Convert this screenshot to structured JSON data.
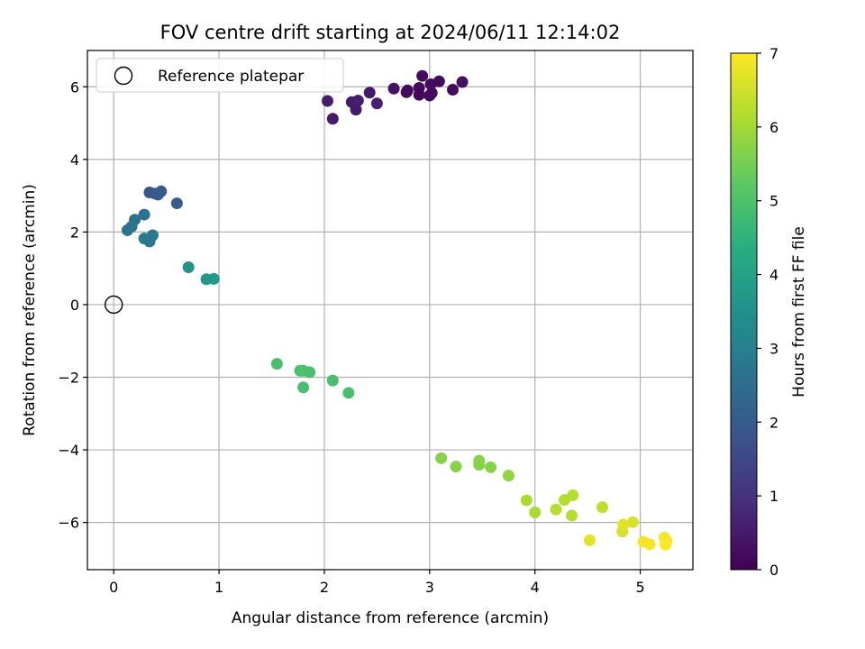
{
  "chart_data": {
    "type": "scatter",
    "title": "FOV centre drift starting at 2024/06/11 12:14:02",
    "xlabel": "Angular distance from reference (arcmin)",
    "ylabel": "Rotation from reference (arcmin)",
    "xlim": [
      -0.25,
      5.5
    ],
    "ylim": [
      -7.3,
      7.0
    ],
    "xticks": [
      0,
      1,
      2,
      3,
      4,
      5
    ],
    "yticks": [
      -6,
      -4,
      -2,
      0,
      2,
      4,
      6
    ],
    "grid": true,
    "legend": {
      "position": "top-left",
      "entries": [
        "Reference platepar"
      ]
    },
    "colorbar": {
      "label": "Hours from first FF file",
      "range": [
        0,
        7
      ],
      "ticks": [
        0,
        1,
        2,
        3,
        4,
        5,
        6,
        7
      ],
      "colormap": "viridis"
    },
    "reference": {
      "x": 0,
      "y": 0,
      "name": "Reference platepar"
    },
    "points": [
      {
        "x": 2.93,
        "y": 6.3,
        "c": 0.2
      },
      {
        "x": 3.09,
        "y": 6.15,
        "c": 0.2
      },
      {
        "x": 3.31,
        "y": 6.13,
        "c": 0.25
      },
      {
        "x": 3.01,
        "y": 6.07,
        "c": 0.2
      },
      {
        "x": 2.66,
        "y": 5.95,
        "c": 0.3
      },
      {
        "x": 2.79,
        "y": 5.9,
        "c": 0.2
      },
      {
        "x": 2.9,
        "y": 5.97,
        "c": 0.15
      },
      {
        "x": 3.22,
        "y": 5.92,
        "c": 0.2
      },
      {
        "x": 3.02,
        "y": 5.83,
        "c": 0.2
      },
      {
        "x": 2.9,
        "y": 5.78,
        "c": 0.1
      },
      {
        "x": 3.0,
        "y": 5.76,
        "c": 0.2
      },
      {
        "x": 2.78,
        "y": 5.85,
        "c": 0.15
      },
      {
        "x": 2.43,
        "y": 5.84,
        "c": 0.5
      },
      {
        "x": 2.03,
        "y": 5.61,
        "c": 0.6
      },
      {
        "x": 2.26,
        "y": 5.58,
        "c": 0.5
      },
      {
        "x": 2.32,
        "y": 5.62,
        "c": 0.6
      },
      {
        "x": 2.5,
        "y": 5.54,
        "c": 0.6
      },
      {
        "x": 2.3,
        "y": 5.37,
        "c": 0.5
      },
      {
        "x": 2.08,
        "y": 5.12,
        "c": 0.5
      },
      {
        "x": 0.34,
        "y": 3.09,
        "c": 1.9
      },
      {
        "x": 0.39,
        "y": 3.06,
        "c": 1.9
      },
      {
        "x": 0.42,
        "y": 3.03,
        "c": 2.0
      },
      {
        "x": 0.45,
        "y": 3.12,
        "c": 2.0
      },
      {
        "x": 0.6,
        "y": 2.79,
        "c": 2.0
      },
      {
        "x": 0.29,
        "y": 2.48,
        "c": 2.6
      },
      {
        "x": 0.2,
        "y": 2.34,
        "c": 2.6
      },
      {
        "x": 0.17,
        "y": 2.15,
        "c": 2.7
      },
      {
        "x": 0.13,
        "y": 2.05,
        "c": 2.7
      },
      {
        "x": 0.37,
        "y": 1.91,
        "c": 2.8
      },
      {
        "x": 0.29,
        "y": 1.82,
        "c": 2.9
      },
      {
        "x": 0.34,
        "y": 1.74,
        "c": 2.8
      },
      {
        "x": 0.71,
        "y": 1.03,
        "c": 3.6
      },
      {
        "x": 0.88,
        "y": 0.7,
        "c": 3.7
      },
      {
        "x": 0.95,
        "y": 0.71,
        "c": 3.7
      },
      {
        "x": 1.55,
        "y": -1.63,
        "c": 4.9
      },
      {
        "x": 1.77,
        "y": -1.82,
        "c": 4.9
      },
      {
        "x": 1.8,
        "y": -1.82,
        "c": 5.0
      },
      {
        "x": 1.86,
        "y": -1.86,
        "c": 4.9
      },
      {
        "x": 2.08,
        "y": -2.09,
        "c": 4.9
      },
      {
        "x": 1.8,
        "y": -2.28,
        "c": 4.9
      },
      {
        "x": 2.23,
        "y": -2.43,
        "c": 4.9
      },
      {
        "x": 3.11,
        "y": -4.23,
        "c": 5.7
      },
      {
        "x": 3.25,
        "y": -4.46,
        "c": 5.7
      },
      {
        "x": 3.47,
        "y": -4.3,
        "c": 5.7
      },
      {
        "x": 3.47,
        "y": -4.41,
        "c": 5.7
      },
      {
        "x": 3.58,
        "y": -4.48,
        "c": 5.7
      },
      {
        "x": 3.75,
        "y": -4.71,
        "c": 5.8
      },
      {
        "x": 3.92,
        "y": -5.39,
        "c": 6.1
      },
      {
        "x": 4.0,
        "y": -5.72,
        "c": 6.1
      },
      {
        "x": 4.2,
        "y": -5.64,
        "c": 6.2
      },
      {
        "x": 4.28,
        "y": -5.38,
        "c": 6.2
      },
      {
        "x": 4.36,
        "y": -5.25,
        "c": 6.2
      },
      {
        "x": 4.35,
        "y": -5.81,
        "c": 6.2
      },
      {
        "x": 4.64,
        "y": -5.58,
        "c": 6.3
      },
      {
        "x": 4.52,
        "y": -6.49,
        "c": 6.7
      },
      {
        "x": 4.83,
        "y": -6.25,
        "c": 6.6
      },
      {
        "x": 4.84,
        "y": -6.06,
        "c": 6.7
      },
      {
        "x": 4.93,
        "y": -5.99,
        "c": 6.6
      },
      {
        "x": 5.03,
        "y": -6.53,
        "c": 6.9
      },
      {
        "x": 5.09,
        "y": -6.6,
        "c": 6.9
      },
      {
        "x": 5.23,
        "y": -6.42,
        "c": 6.9
      },
      {
        "x": 5.25,
        "y": -6.5,
        "c": 6.9
      },
      {
        "x": 5.24,
        "y": -6.61,
        "c": 7.0
      }
    ]
  }
}
